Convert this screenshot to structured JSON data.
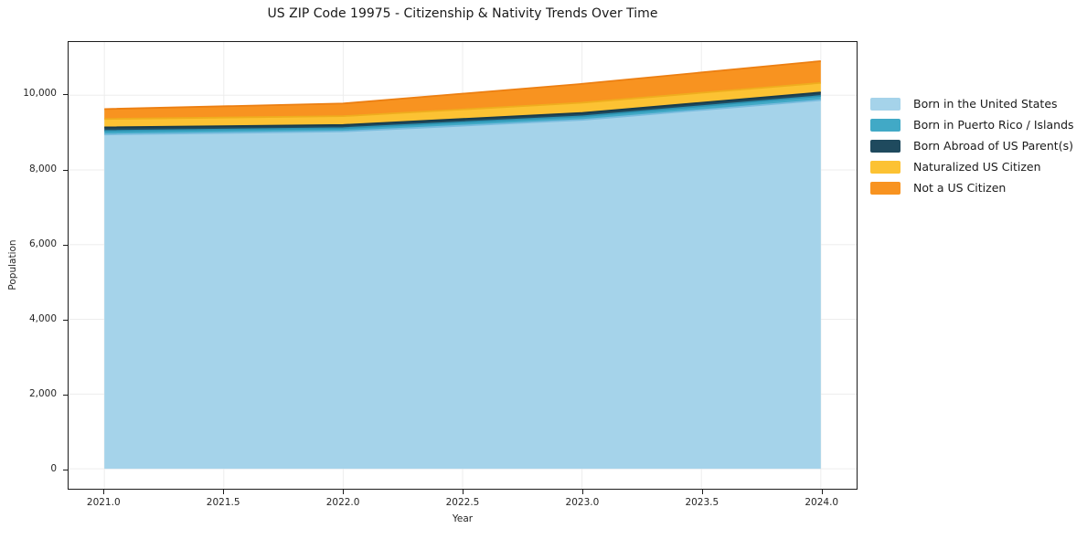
{
  "title": "US ZIP Code 19975 - Citizenship & Nativity Trends Over Time",
  "chart_data": {
    "type": "area",
    "stacked": true,
    "title": "US ZIP Code 19975 - Citizenship & Nativity Trends Over Time",
    "xlabel": "Year",
    "ylabel": "Population",
    "x": [
      2021,
      2022,
      2023,
      2024
    ],
    "series": [
      {
        "name": "Born in the United States",
        "values": [
          8950,
          9030,
          9340,
          9870
        ],
        "color": "#A5D3EA",
        "line_color": "#79BCDE"
      },
      {
        "name": "Born in Puerto Rico / Islands",
        "values": [
          95,
          90,
          95,
          110
        ],
        "color": "#41A9C6",
        "line_color": "#2C93B2"
      },
      {
        "name": "Born Abroad of US Parent(s)",
        "values": [
          95,
          85,
          90,
          95
        ],
        "color": "#1F4A5E",
        "line_color": "#173B4C"
      },
      {
        "name": "Naturalized US Citizen",
        "values": [
          225,
          235,
          275,
          255
        ],
        "color": "#FCC233",
        "line_color": "#EFAD1E"
      },
      {
        "name": "Not a US Citizen",
        "values": [
          265,
          340,
          505,
          585
        ],
        "color": "#F89320",
        "line_color": "#EC7F12"
      }
    ],
    "totals_by_year": [
      9630,
      9780,
      10305,
      10915
    ],
    "xlim": [
      2020.85,
      2024.15
    ],
    "ylim": [
      -536,
      11425
    ],
    "xticks": {
      "values": [
        2021,
        2021.5,
        2022,
        2022.5,
        2023,
        2023.5,
        2024
      ],
      "labels": [
        "2021.0",
        "2021.5",
        "2022.0",
        "2022.5",
        "2023.0",
        "2023.5",
        "2024.0"
      ]
    },
    "yticks": {
      "values": [
        0,
        2000,
        4000,
        6000,
        8000,
        10000
      ],
      "labels": [
        "0",
        "2,000",
        "4,000",
        "6,000",
        "8,000",
        "10,000"
      ]
    },
    "grid": true,
    "grid_color": "#ededed",
    "legend_position": "outside-right"
  }
}
